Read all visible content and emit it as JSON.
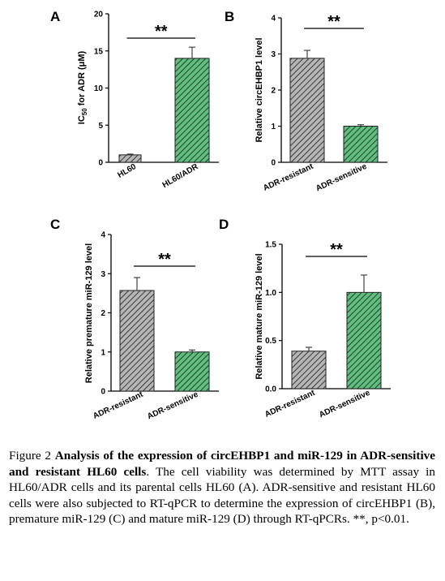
{
  "colors": {
    "grey_bar": "#a8a8a8",
    "green_bar": "#3a9a5c",
    "hatch": "#1a1a1a"
  },
  "chart_data": [
    {
      "panel": "A",
      "type": "bar",
      "categories": [
        "HL60",
        "HL60/ADR"
      ],
      "values": [
        1.0,
        14.0
      ],
      "errors": [
        0.1,
        1.5
      ],
      "ylabel_parts": [
        "IC",
        "50",
        " for ADR (μM)"
      ],
      "ylim": [
        0,
        20
      ],
      "yticks": [
        "0",
        "5",
        "10",
        "15",
        "20"
      ],
      "significance": "**"
    },
    {
      "panel": "B",
      "type": "bar",
      "categories": [
        "ADR-resistant",
        "ADR-sensitive"
      ],
      "values": [
        2.88,
        1.0
      ],
      "errors": [
        0.22,
        0.04
      ],
      "ylabel": "Relative circEHBP1 level",
      "ylim": [
        0,
        4
      ],
      "yticks": [
        "0",
        "1",
        "2",
        "3",
        "4"
      ],
      "significance": "**"
    },
    {
      "panel": "C",
      "type": "bar",
      "categories": [
        "ADR-resistant",
        "ADR-sensitive"
      ],
      "values": [
        2.57,
        1.0
      ],
      "errors": [
        0.33,
        0.05
      ],
      "ylabel": "Relative premature miR-129 level",
      "ylim": [
        0,
        4
      ],
      "yticks": [
        "0",
        "1",
        "2",
        "3",
        "4"
      ],
      "significance": "**"
    },
    {
      "panel": "D",
      "type": "bar",
      "categories": [
        "ADR-resistant",
        "ADR-sensitive"
      ],
      "values": [
        0.39,
        1.0
      ],
      "errors": [
        0.04,
        0.18
      ],
      "ylabel": "Relative mature miR-129 level",
      "ylim": [
        0,
        1.5
      ],
      "yticks": [
        "0.0",
        "0.5",
        "1.0",
        "1.5"
      ],
      "significance": "**"
    }
  ],
  "caption": {
    "prefix": "Figure 2 ",
    "bold": "Analysis of the expression of circEHBP1 and miR-129 in ADR-sensitive and resistant HL60 cells",
    "rest": ". The cell viability was determined by MTT assay in HL60/ADR cells and its parental cells HL60 (A). ADR-sensitive and resistant HL60 cells were also subjected to RT-qPCR to determine the expression of circEHBP1 (B), premature miR-129 (C) and mature miR-129 (D) through RT-qPCRs. **, p<0.01."
  }
}
